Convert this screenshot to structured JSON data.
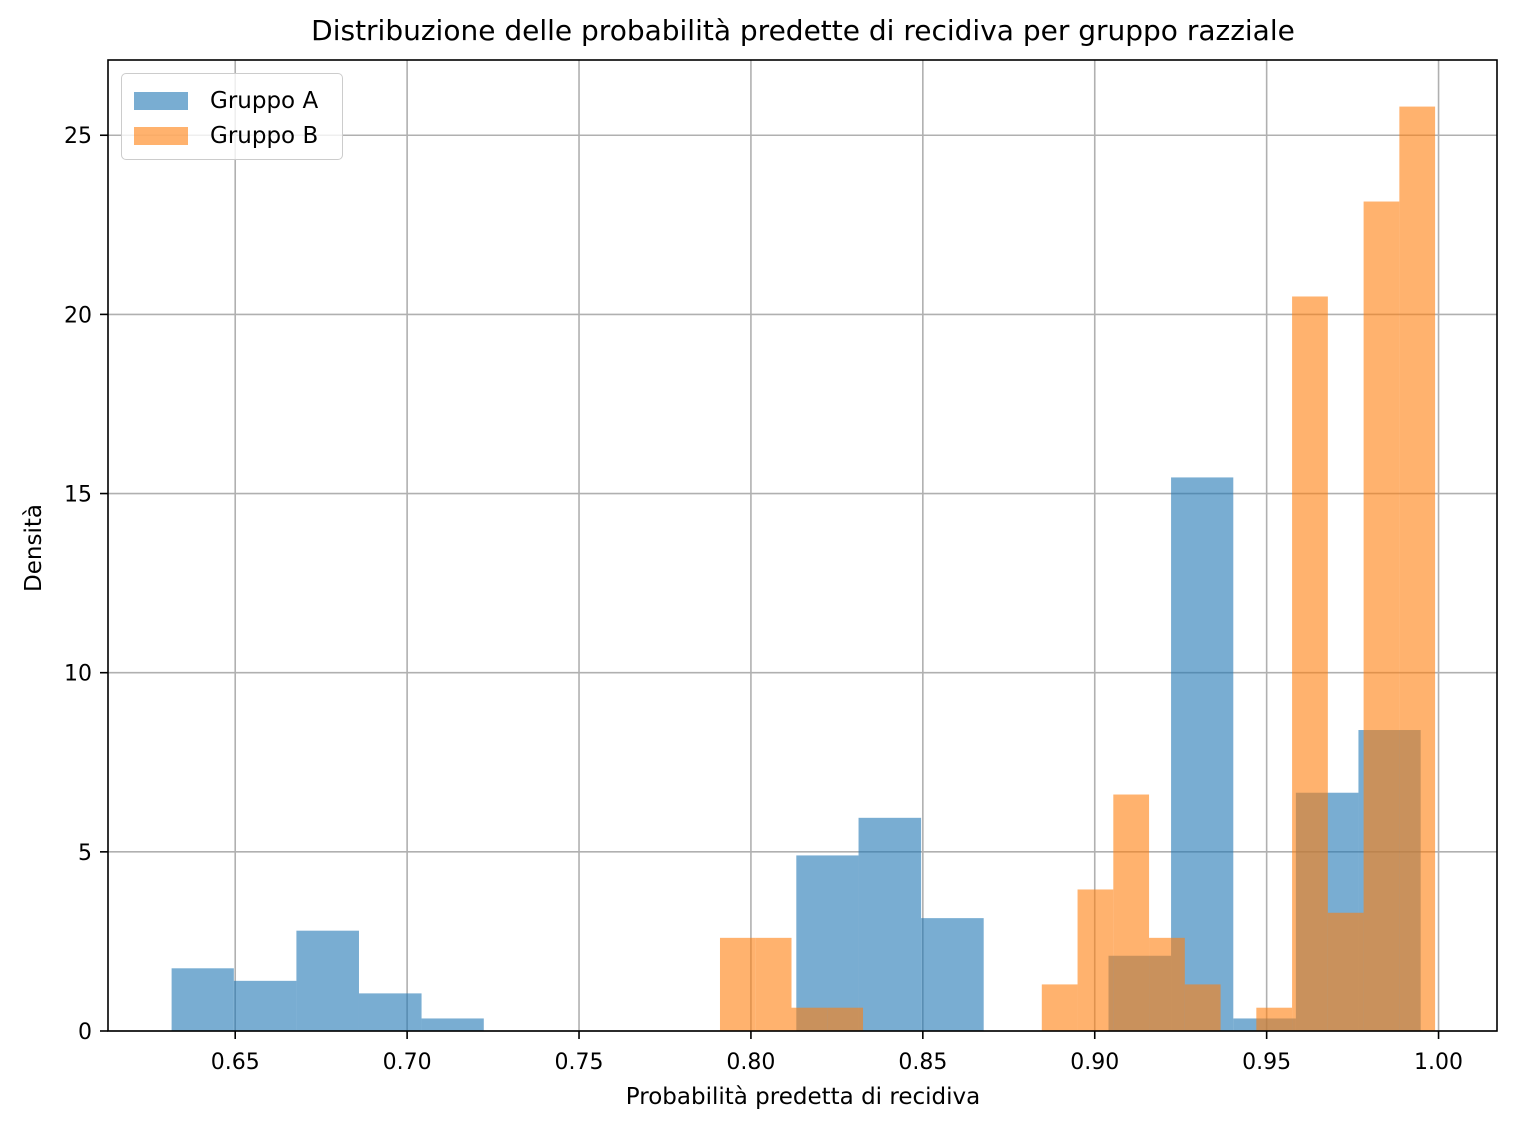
{
  "chart_data": {
    "type": "bar",
    "title": "Distribuzione delle probabilità predette di recidiva per gruppo razziale",
    "xlabel": "Probabilità predetta di recidiva",
    "ylabel": "Densità",
    "xlim": [
      0.613,
      1.017
    ],
    "ylim": [
      0,
      27.1
    ],
    "x_ticks": [
      "0.65",
      "0.70",
      "0.75",
      "0.80",
      "0.85",
      "0.90",
      "0.95",
      "1.00"
    ],
    "x_tick_values": [
      0.65,
      0.7,
      0.75,
      0.8,
      0.85,
      0.9,
      0.95,
      1.0
    ],
    "y_ticks": [
      "0",
      "5",
      "10",
      "15",
      "20",
      "25"
    ],
    "y_tick_values": [
      0,
      5,
      10,
      15,
      20,
      25
    ],
    "grid": true,
    "legend_position": "top-left",
    "series": [
      {
        "name": "Gruppo A",
        "color": "#1f77b4",
        "alpha": 0.6,
        "bins": [
          {
            "x0": 0.6315,
            "x1": 0.6496,
            "value": 1.75
          },
          {
            "x0": 0.6496,
            "x1": 0.6678,
            "value": 1.4
          },
          {
            "x0": 0.6678,
            "x1": 0.686,
            "value": 2.8
          },
          {
            "x0": 0.686,
            "x1": 0.7042,
            "value": 1.05
          },
          {
            "x0": 0.7042,
            "x1": 0.7223,
            "value": 0.35
          },
          {
            "x0": 0.7223,
            "x1": 0.7405,
            "value": 0
          },
          {
            "x0": 0.7405,
            "x1": 0.7587,
            "value": 0
          },
          {
            "x0": 0.7587,
            "x1": 0.7768,
            "value": 0
          },
          {
            "x0": 0.7768,
            "x1": 0.795,
            "value": 0
          },
          {
            "x0": 0.795,
            "x1": 0.8132,
            "value": 0
          },
          {
            "x0": 0.8132,
            "x1": 0.8313,
            "value": 4.9
          },
          {
            "x0": 0.8313,
            "x1": 0.8495,
            "value": 5.95
          },
          {
            "x0": 0.8495,
            "x1": 0.8677,
            "value": 3.15
          },
          {
            "x0": 0.8677,
            "x1": 0.8858,
            "value": 0
          },
          {
            "x0": 0.8858,
            "x1": 0.904,
            "value": 0
          },
          {
            "x0": 0.904,
            "x1": 0.9222,
            "value": 2.1
          },
          {
            "x0": 0.9222,
            "x1": 0.9403,
            "value": 15.45
          },
          {
            "x0": 0.9403,
            "x1": 0.9585,
            "value": 0.35
          },
          {
            "x0": 0.9585,
            "x1": 0.9767,
            "value": 6.65
          },
          {
            "x0": 0.9767,
            "x1": 0.9948,
            "value": 8.4
          }
        ]
      },
      {
        "name": "Gruppo B",
        "color": "#ff7f0e",
        "alpha": 0.6,
        "bins": [
          {
            "x0": 0.791,
            "x1": 0.8014,
            "value": 2.6
          },
          {
            "x0": 0.8014,
            "x1": 0.8118,
            "value": 2.6
          },
          {
            "x0": 0.8118,
            "x1": 0.8222,
            "value": 0.65
          },
          {
            "x0": 0.8222,
            "x1": 0.8326,
            "value": 0.65
          },
          {
            "x0": 0.8326,
            "x1": 0.843,
            "value": 0
          },
          {
            "x0": 0.843,
            "x1": 0.8534,
            "value": 0
          },
          {
            "x0": 0.8534,
            "x1": 0.8638,
            "value": 0
          },
          {
            "x0": 0.8638,
            "x1": 0.8742,
            "value": 0
          },
          {
            "x0": 0.8742,
            "x1": 0.8846,
            "value": 0
          },
          {
            "x0": 0.8846,
            "x1": 0.895,
            "value": 1.3
          },
          {
            "x0": 0.895,
            "x1": 0.9054,
            "value": 3.95
          },
          {
            "x0": 0.9054,
            "x1": 0.9158,
            "value": 6.6
          },
          {
            "x0": 0.9158,
            "x1": 0.9262,
            "value": 2.6
          },
          {
            "x0": 0.9262,
            "x1": 0.9366,
            "value": 1.3
          },
          {
            "x0": 0.9366,
            "x1": 0.947,
            "value": 0
          },
          {
            "x0": 0.947,
            "x1": 0.9574,
            "value": 0.65
          },
          {
            "x0": 0.9574,
            "x1": 0.9678,
            "value": 20.5
          },
          {
            "x0": 0.9678,
            "x1": 0.9782,
            "value": 3.3
          },
          {
            "x0": 0.9782,
            "x1": 0.9886,
            "value": 23.15
          },
          {
            "x0": 0.9886,
            "x1": 0.999,
            "value": 25.8
          }
        ]
      }
    ]
  }
}
